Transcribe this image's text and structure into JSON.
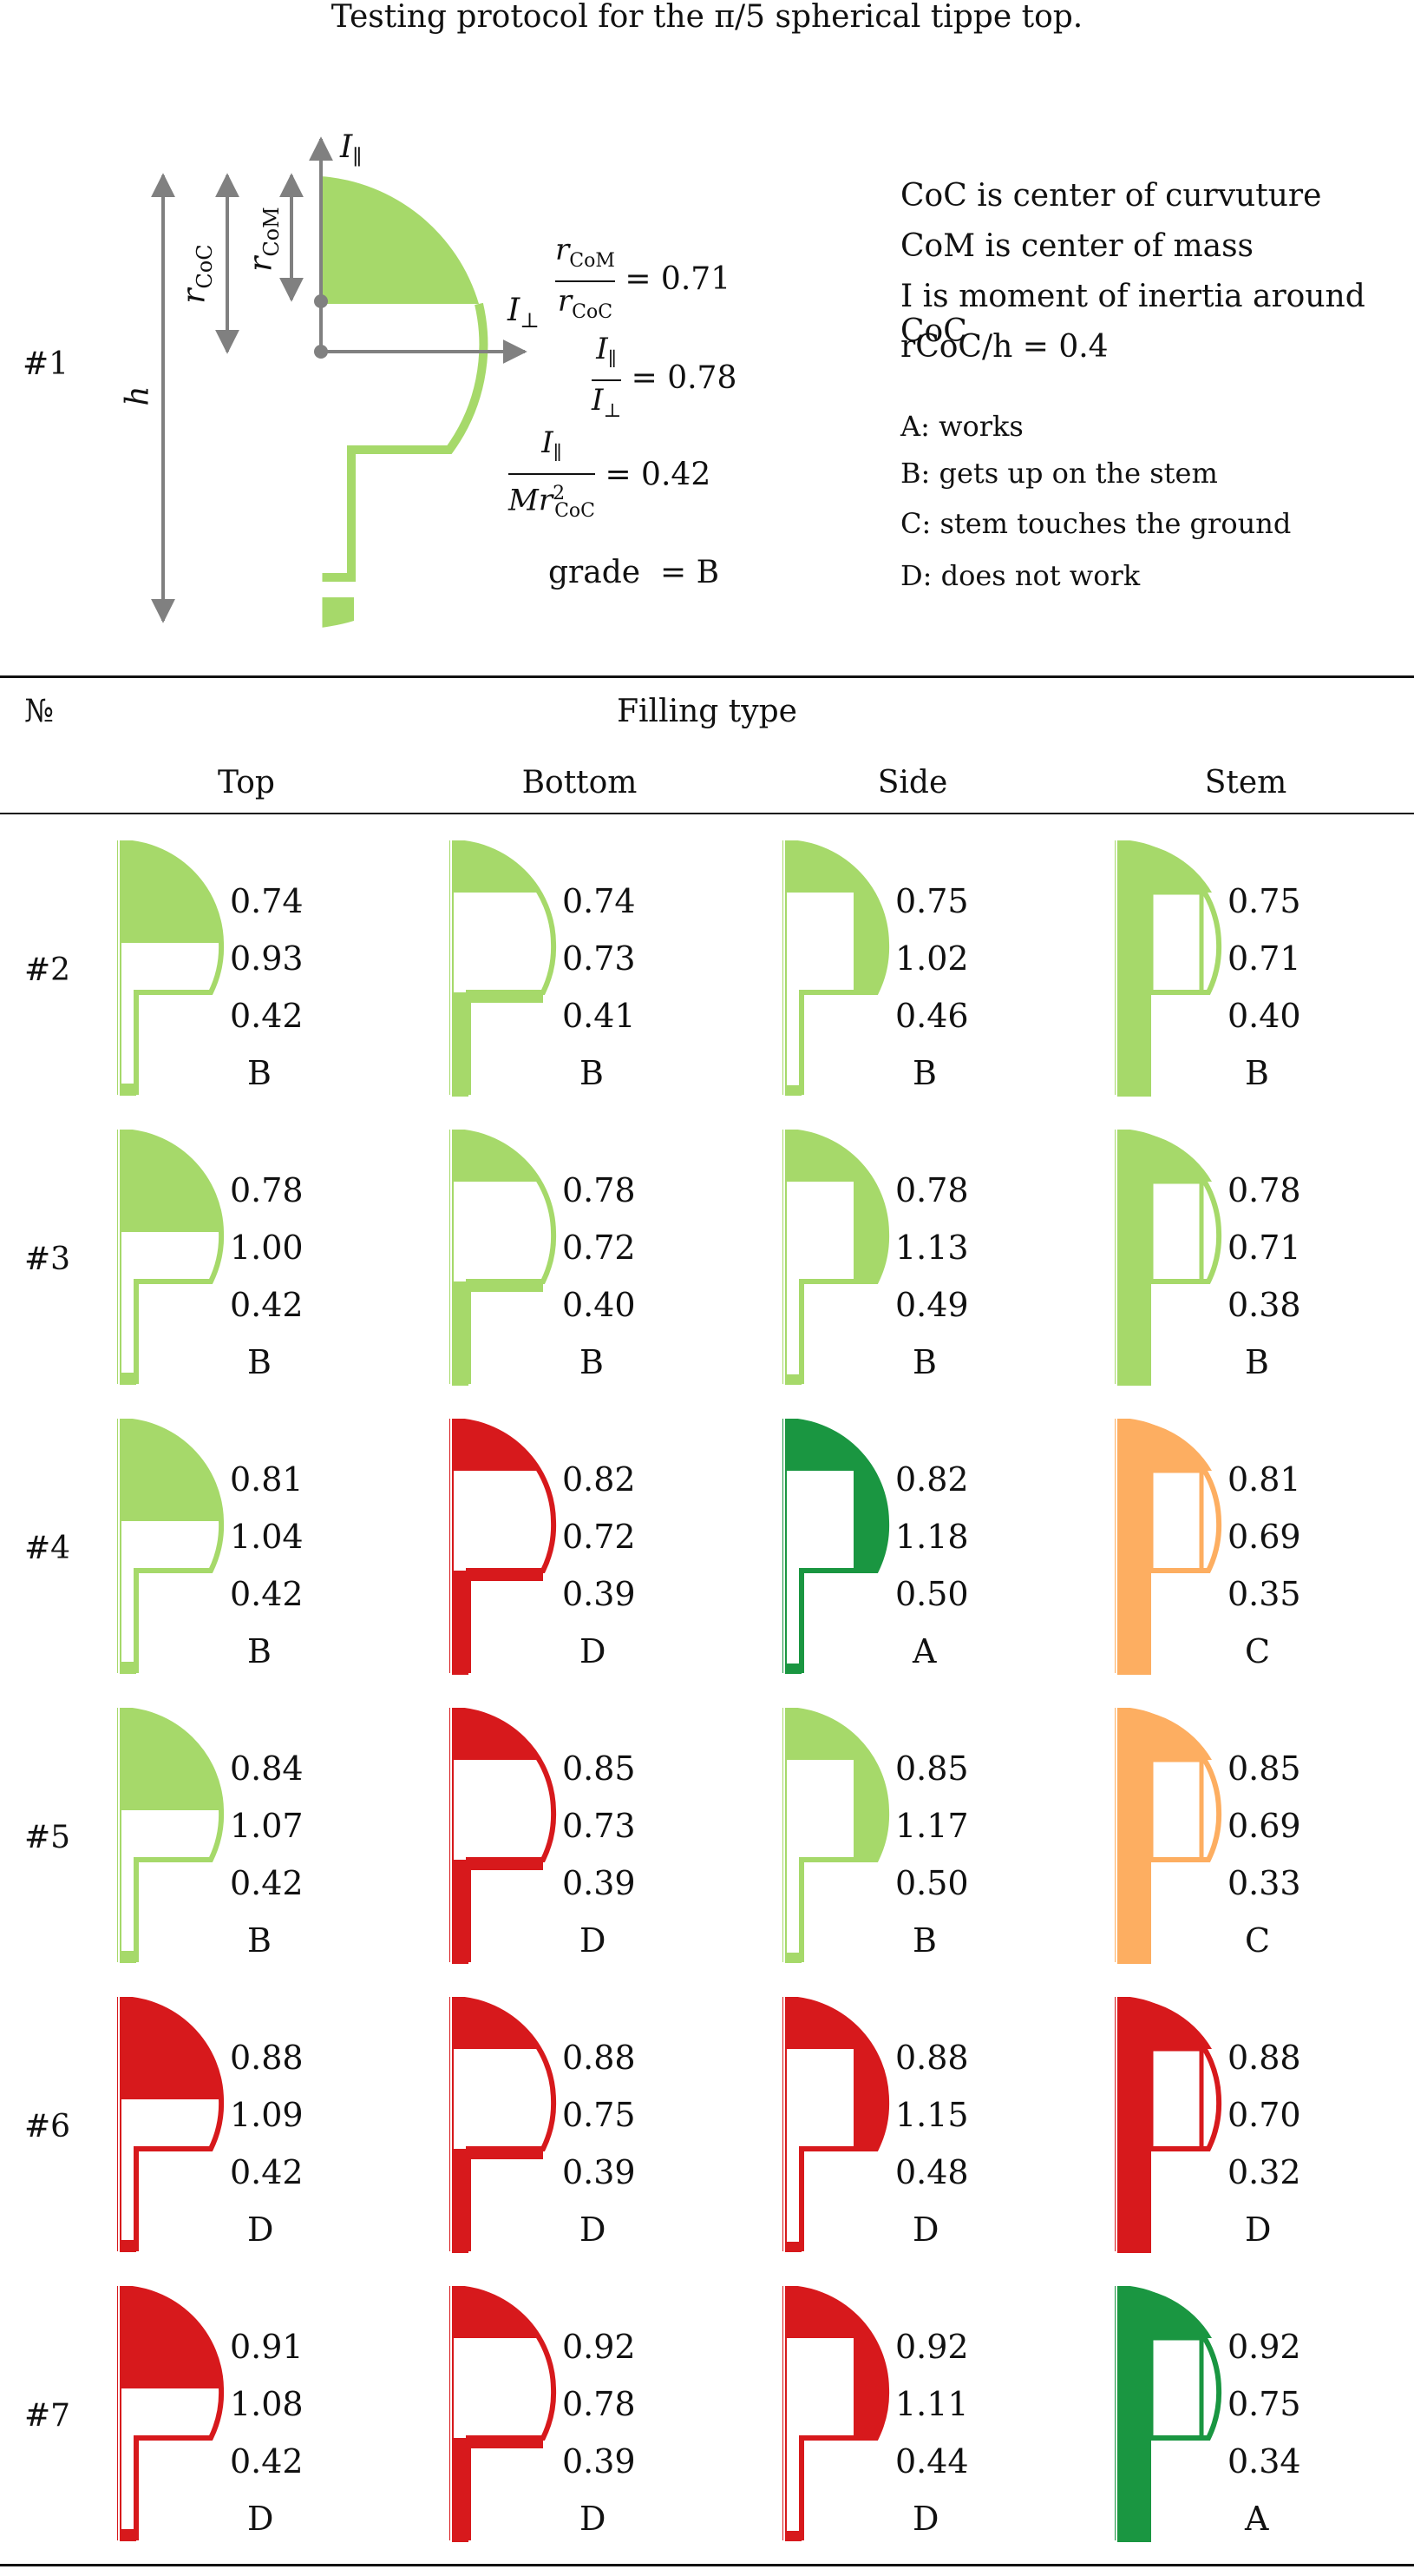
{
  "title": "Testing protocol for the π/5 spherical tippe top.",
  "example": {
    "id": "#1",
    "labels": {
      "h": "h",
      "r_coc": "r",
      "r_coc_sub": "CoC",
      "r_com": "r",
      "r_com_sub": "CoM",
      "i_par": "I",
      "i_par_sub": "∥",
      "i_perp": "I",
      "i_perp_sub": "⊥"
    },
    "eq1": {
      "num": "r",
      "num_sub": "CoM",
      "den": "r",
      "den_sub": "CoC",
      "value": "= 0.71"
    },
    "eq2": {
      "num": "I",
      "num_sub": "∥",
      "den": "I",
      "den_sub": "⊥",
      "value": "= 0.78"
    },
    "eq3": {
      "num": "I",
      "num_sub": "∥",
      "den": "Mr",
      "den_sup": "2",
      "den_sub": "CoC",
      "value": "= 0.42"
    },
    "grade_label": "grade",
    "grade_value": "= B",
    "fill_color": "#a6d96a"
  },
  "notes": [
    "CoC is center of curvuture",
    "CoM is center of mass",
    "I is moment of inertia around CoC",
    "rCoC/h = 0.4"
  ],
  "grades_legend": [
    "A: works",
    "B: gets up on the stem",
    "C: stem touches the ground",
    "D: does not work"
  ],
  "table": {
    "num_header": "№",
    "group_header": "Filling type",
    "columns": [
      "Top",
      "Bottom",
      "Side",
      "Stem"
    ],
    "grade_colors": {
      "A": "#1a9641",
      "B": "#a6d96a",
      "C": "#fdae61",
      "D": "#d7191c"
    },
    "rows": [
      {
        "id": "#2",
        "cells": [
          {
            "v": [
              "0.74",
              "0.93",
              "0.42"
            ],
            "grade": "B"
          },
          {
            "v": [
              "0.74",
              "0.73",
              "0.41"
            ],
            "grade": "B"
          },
          {
            "v": [
              "0.75",
              "1.02",
              "0.46"
            ],
            "grade": "B"
          },
          {
            "v": [
              "0.75",
              "0.71",
              "0.40"
            ],
            "grade": "B"
          }
        ]
      },
      {
        "id": "#3",
        "cells": [
          {
            "v": [
              "0.78",
              "1.00",
              "0.42"
            ],
            "grade": "B"
          },
          {
            "v": [
              "0.78",
              "0.72",
              "0.40"
            ],
            "grade": "B"
          },
          {
            "v": [
              "0.78",
              "1.13",
              "0.49"
            ],
            "grade": "B"
          },
          {
            "v": [
              "0.78",
              "0.71",
              "0.38"
            ],
            "grade": "B"
          }
        ]
      },
      {
        "id": "#4",
        "cells": [
          {
            "v": [
              "0.81",
              "1.04",
              "0.42"
            ],
            "grade": "B"
          },
          {
            "v": [
              "0.82",
              "0.72",
              "0.39"
            ],
            "grade": "D"
          },
          {
            "v": [
              "0.82",
              "1.18",
              "0.50"
            ],
            "grade": "A"
          },
          {
            "v": [
              "0.81",
              "0.69",
              "0.35"
            ],
            "grade": "C"
          }
        ]
      },
      {
        "id": "#5",
        "cells": [
          {
            "v": [
              "0.84",
              "1.07",
              "0.42"
            ],
            "grade": "B"
          },
          {
            "v": [
              "0.85",
              "0.73",
              "0.39"
            ],
            "grade": "D"
          },
          {
            "v": [
              "0.85",
              "1.17",
              "0.50"
            ],
            "grade": "B"
          },
          {
            "v": [
              "0.85",
              "0.69",
              "0.33"
            ],
            "grade": "C"
          }
        ]
      },
      {
        "id": "#6",
        "cells": [
          {
            "v": [
              "0.88",
              "1.09",
              "0.42"
            ],
            "grade": "D"
          },
          {
            "v": [
              "0.88",
              "0.75",
              "0.39"
            ],
            "grade": "D"
          },
          {
            "v": [
              "0.88",
              "1.15",
              "0.48"
            ],
            "grade": "D"
          },
          {
            "v": [
              "0.88",
              "0.70",
              "0.32"
            ],
            "grade": "D"
          }
        ]
      },
      {
        "id": "#7",
        "cells": [
          {
            "v": [
              "0.91",
              "1.08",
              "0.42"
            ],
            "grade": "D"
          },
          {
            "v": [
              "0.92",
              "0.78",
              "0.39"
            ],
            "grade": "D"
          },
          {
            "v": [
              "0.92",
              "1.11",
              "0.44"
            ],
            "grade": "D"
          },
          {
            "v": [
              "0.92",
              "0.75",
              "0.34"
            ],
            "grade": "A"
          }
        ]
      }
    ]
  }
}
